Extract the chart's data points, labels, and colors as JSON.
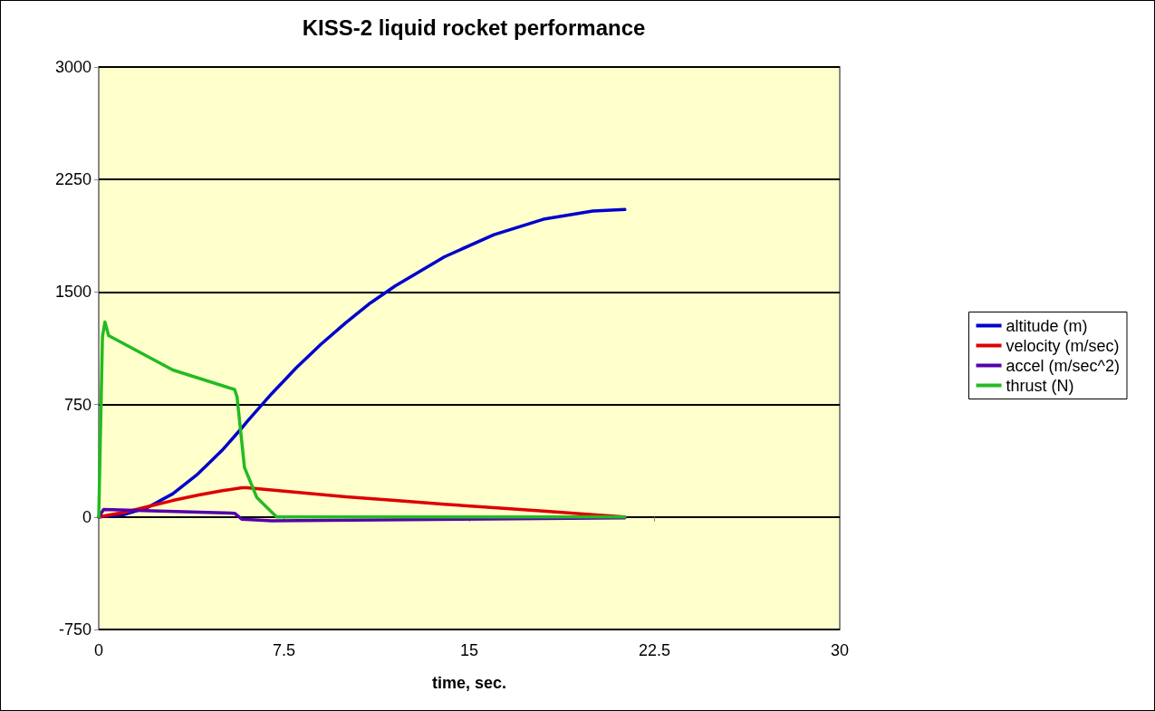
{
  "chart_data": {
    "type": "line",
    "title": "KISS-2 liquid rocket performance",
    "xlabel": "time, sec.",
    "xlim": [
      0,
      30
    ],
    "xticks": [
      0,
      7.5,
      15,
      22.5,
      30
    ],
    "ylim": [
      -750,
      3000
    ],
    "yticks": [
      -750,
      0,
      750,
      1500,
      2250,
      3000
    ],
    "grid": "y",
    "legend": "right",
    "marker": "none",
    "line_style": "solid",
    "series": [
      {
        "name": "altitude (m)",
        "color": "#0000cc",
        "x": [
          0,
          1,
          2,
          3,
          4,
          5,
          5.8,
          6,
          7,
          8,
          9,
          10,
          11,
          12,
          14,
          16,
          18,
          20,
          21.3
        ],
        "values": [
          0,
          15,
          65,
          155,
          285,
          445,
          595,
          635,
          822,
          995,
          1152,
          1295,
          1427,
          1540,
          1735,
          1882,
          1985,
          2040,
          2050
        ]
      },
      {
        "name": "velocity (m/sec)",
        "color": "#dd0000",
        "x": [
          0,
          1,
          2,
          3,
          4,
          5,
          5.8,
          6,
          7,
          8,
          9,
          10,
          12,
          14,
          16,
          18,
          20,
          21.3
        ],
        "values": [
          0,
          30,
          70,
          110,
          145,
          175,
          195,
          195,
          180,
          165,
          150,
          135,
          110,
          85,
          62,
          40,
          15,
          0
        ]
      },
      {
        "name": "accel (m/sec^2)",
        "color": "#5500aa",
        "x": [
          0,
          0.2,
          5.5,
          5.8,
          7,
          21.3
        ],
        "values": [
          0,
          50,
          25,
          -15,
          -25,
          -5
        ]
      },
      {
        "name": "thrust (N)",
        "color": "#22bb22",
        "x": [
          0,
          0.15,
          0.25,
          0.4,
          3,
          5.5,
          5.6,
          5.9,
          6.4,
          7.2,
          21.3
        ],
        "values": [
          0,
          1200,
          1300,
          1210,
          980,
          850,
          800,
          330,
          130,
          0,
          0
        ]
      }
    ]
  }
}
